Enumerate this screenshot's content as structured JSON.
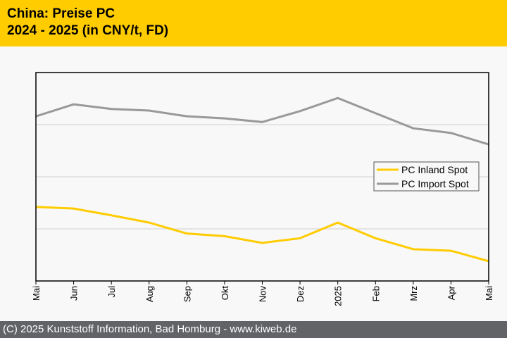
{
  "header": {
    "title_line1": "China: Preise PC",
    "title_line2": "2024 - 2025 (in CNY/t, FD)"
  },
  "footer": {
    "copyright": "(C) 2025 Kunststoff Information, Bad Homburg - www.kiweb.de"
  },
  "colors": {
    "header_bg": "#ffcc00",
    "footer_bg": "#616366",
    "inland": "#ffcc00",
    "import": "#999999"
  },
  "chart_data": {
    "type": "line",
    "title": "China: Preise PC 2024 - 2025 (in CNY/t, FD)",
    "xlabel": "",
    "ylabel": "",
    "y_tick_labels_shown": false,
    "y_units_note": "values in gridline units (no y-axis labels shown); 4 bands, 0 = bottom axis",
    "ylim": [
      0,
      4
    ],
    "grid": true,
    "legend_position": "center-right",
    "categories": [
      "Mai",
      "Jun",
      "Jul",
      "Aug",
      "Sep",
      "Okt",
      "Nov",
      "Dez",
      "2025",
      "Feb",
      "Mrz",
      "Apr",
      "Mai"
    ],
    "series": [
      {
        "name": "PC Inland Spot",
        "color": "#ffcc00",
        "values": [
          1.42,
          1.39,
          1.26,
          1.12,
          0.91,
          0.86,
          0.73,
          0.82,
          1.12,
          0.82,
          0.61,
          0.58,
          0.38
        ]
      },
      {
        "name": "PC Import Spot",
        "color": "#999999",
        "values": [
          3.16,
          3.39,
          3.3,
          3.27,
          3.16,
          3.12,
          3.05,
          3.26,
          3.51,
          3.22,
          2.93,
          2.84,
          2.62
        ]
      }
    ]
  }
}
